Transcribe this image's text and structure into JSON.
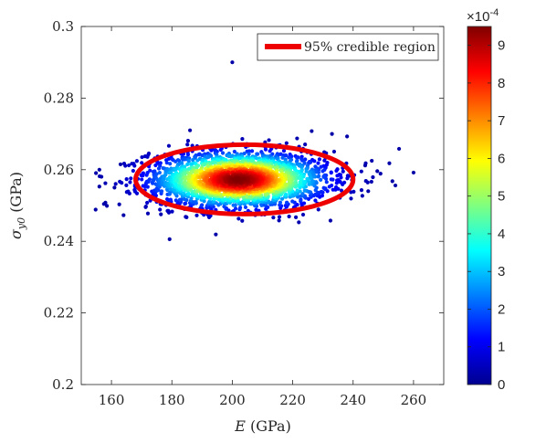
{
  "chart_data": {
    "type": "scatter",
    "xlabel": {
      "var": "E",
      "unit": " (GPa)"
    },
    "ylabel": {
      "var": "σ",
      "sub": "y0",
      "unit": " (GPa)"
    },
    "xlim": [
      150,
      270
    ],
    "ylim": [
      0.2,
      0.3
    ],
    "x_ticks": [
      160,
      180,
      200,
      220,
      240,
      260
    ],
    "y_ticks": [
      0.2,
      0.22,
      0.24,
      0.26,
      0.28,
      0.3
    ],
    "x_tick_labels": [
      "160",
      "180",
      "200",
      "220",
      "240",
      "260"
    ],
    "y_tick_labels": [
      "0.2",
      "0.22",
      "0.24",
      "0.26",
      "0.28",
      "0.3"
    ],
    "grid": false,
    "legend": {
      "position": "top-right",
      "entries": [
        "95% credible region"
      ]
    },
    "region": {
      "name": "95% credible region",
      "color": "#ee0000",
      "center": [
        204,
        0.2573
      ],
      "half_width_x": 36,
      "half_width_y": 0.0097
    },
    "density_peak": [
      202,
      0.2572
    ],
    "outliers": [
      [
        200,
        0.29
      ],
      [
        156,
        0.26
      ],
      [
        156,
        0.2553
      ],
      [
        158,
        0.2508
      ],
      [
        164,
        0.2473
      ],
      [
        161,
        0.255
      ],
      [
        163,
        0.2615
      ],
      [
        252,
        0.2618
      ],
      [
        260,
        0.2592
      ],
      [
        254,
        0.2556
      ],
      [
        253,
        0.2568
      ],
      [
        248,
        0.2596
      ],
      [
        245,
        0.254
      ],
      [
        238,
        0.2693
      ],
      [
        233,
        0.27
      ],
      [
        186,
        0.271
      ],
      [
        244,
        0.2612
      ]
    ],
    "colorbar": {
      "min": 0,
      "max": 0.00095,
      "ticks": [
        0,
        1,
        2,
        3,
        4,
        5,
        6,
        7,
        8,
        9
      ],
      "tick_labels": [
        "0",
        "1",
        "2",
        "3",
        "4",
        "5",
        "6",
        "7",
        "8",
        "9"
      ],
      "exponent_label": "×10",
      "exponent": "-4",
      "colormap": "jet"
    }
  }
}
